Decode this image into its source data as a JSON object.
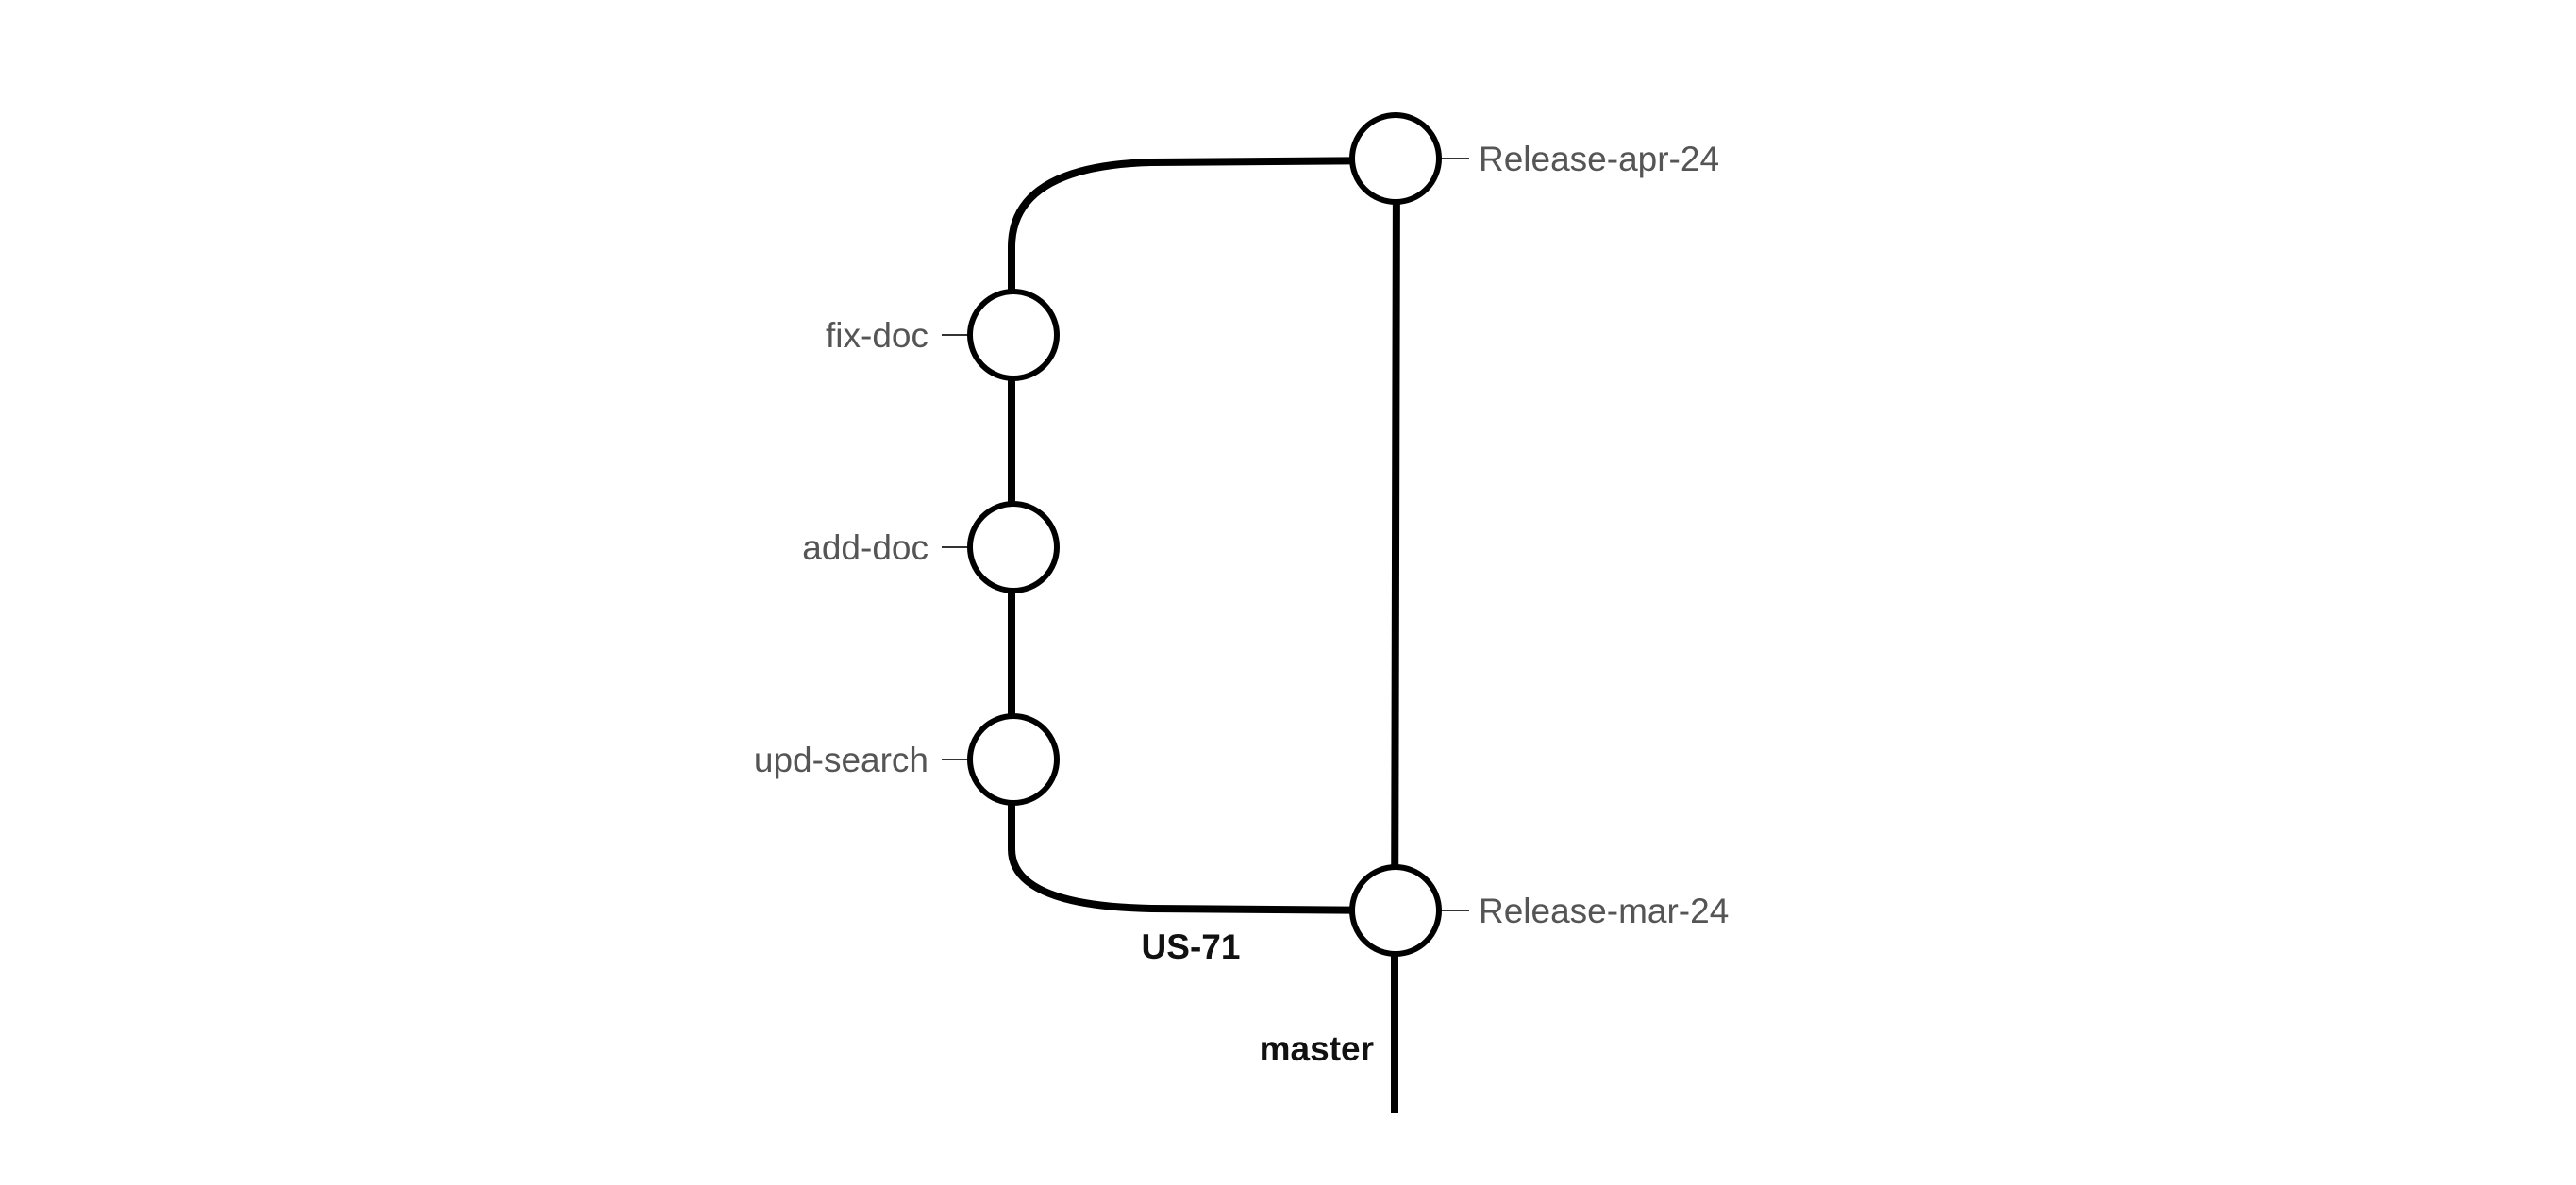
{
  "branches": {
    "master": "master",
    "feature": "US-71"
  },
  "commits": {
    "release_apr": "Release-apr-24",
    "fix_doc": "fix-doc",
    "add_doc": "add-doc",
    "upd_search": "upd-search",
    "release_mar": "Release-mar-24"
  },
  "colors": {
    "line": "#000000",
    "node_fill": "#ffffff",
    "label": "#555555",
    "branch_label": "#111111"
  }
}
